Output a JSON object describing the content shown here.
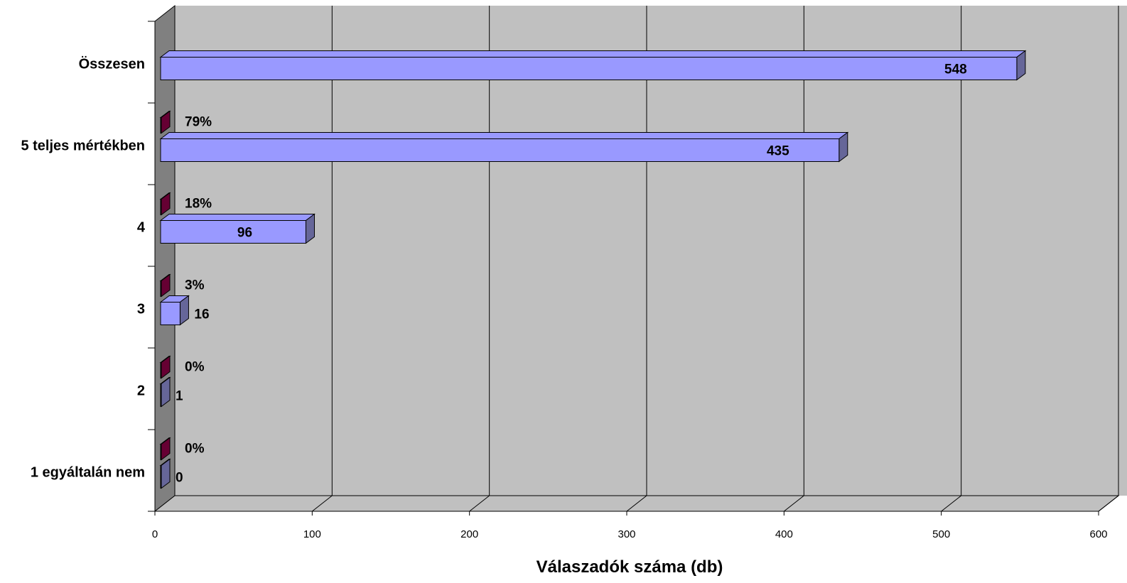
{
  "chart_data": {
    "type": "bar",
    "orientation": "horizontal",
    "three_d": true,
    "categories": [
      "1 egyáltalán nem",
      "2",
      "3",
      "4",
      "5 teljes mértékben",
      "Összesen"
    ],
    "series": [
      {
        "values": [
          0,
          1,
          16,
          96,
          435,
          548
        ],
        "color": "#9999ff",
        "side_color": "#666699"
      },
      {
        "values": [
          "0%",
          "0%",
          "3%",
          "18%",
          "79%",
          null
        ],
        "color": "#993366",
        "side_color": "#660033"
      }
    ],
    "xlabel": "Válaszadók száma (db)",
    "xlim": [
      0,
      600
    ],
    "xticks": [
      "0",
      "100",
      "200",
      "300",
      "400",
      "500",
      "600"
    ],
    "grid": true,
    "legend": "none",
    "colors": {
      "plot_back": "#c0c0c0",
      "plot_side": "#808080",
      "plot_floor": "#c0c0c0"
    }
  }
}
